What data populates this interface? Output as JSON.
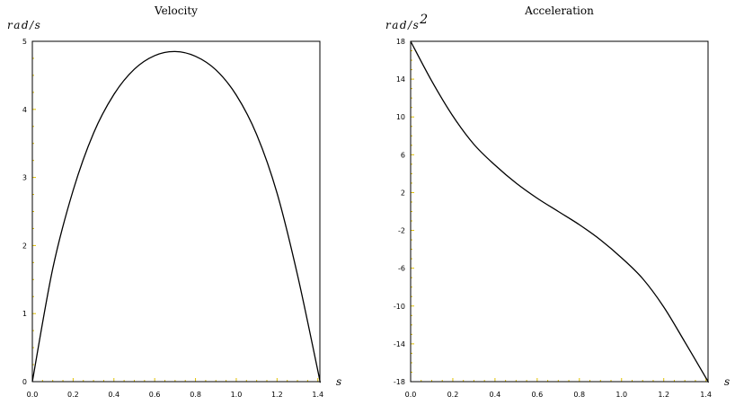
{
  "chart_data": [
    {
      "type": "line",
      "title": "Velocity",
      "ylabel": "rad/s",
      "xlabel": "s",
      "xlim": [
        0,
        1.41
      ],
      "ylim": [
        0,
        5
      ],
      "x_ticks": [
        0.0,
        0.2,
        0.4,
        0.6,
        0.8,
        1.0,
        1.2,
        1.4
      ],
      "x_tick_labels": [
        "0.0",
        "0.2",
        "0.4",
        "0.6",
        "0.8",
        "1.0",
        "1.2",
        "1.4"
      ],
      "y_ticks": [
        0,
        1,
        2,
        3,
        4,
        5
      ],
      "y_tick_labels": [
        "0",
        "1",
        "2",
        "3",
        "4",
        "5"
      ],
      "grid": false,
      "series": [
        {
          "x": [
            0.0,
            0.1,
            0.2,
            0.3,
            0.4,
            0.5,
            0.6,
            0.7,
            0.8,
            0.9,
            1.0,
            1.1,
            1.2,
            1.3,
            1.4,
            1.41
          ],
          "values": [
            0.0,
            1.66,
            2.81,
            3.65,
            4.22,
            4.59,
            4.79,
            4.85,
            4.78,
            4.58,
            4.21,
            3.63,
            2.77,
            1.57,
            0.16,
            0.0
          ]
        }
      ]
    },
    {
      "type": "line",
      "title": "Acceleration",
      "ylabel": "rad/s",
      "ylabel_superscript": "2",
      "xlabel": "s",
      "xlim": [
        0,
        1.41
      ],
      "ylim": [
        -18,
        18
      ],
      "x_ticks": [
        0.0,
        0.2,
        0.4,
        0.6,
        0.8,
        1.0,
        1.2,
        1.4
      ],
      "x_tick_labels": [
        "0.0",
        "0.2",
        "0.4",
        "0.6",
        "0.8",
        "1.0",
        "1.2",
        "1.4"
      ],
      "y_ticks": [
        -18,
        -14,
        -10,
        -6,
        -2,
        2,
        6,
        10,
        14,
        18
      ],
      "y_tick_labels": [
        "-18",
        "-14",
        "-10",
        "-6",
        "-2",
        "2",
        "6",
        "10",
        "14",
        "18"
      ],
      "grid": false,
      "series": [
        {
          "x": [
            0.0,
            0.1,
            0.2,
            0.3,
            0.4,
            0.5,
            0.6,
            0.7,
            0.8,
            0.9,
            1.0,
            1.1,
            1.2,
            1.3,
            1.4,
            1.41
          ],
          "values": [
            18.0,
            13.8,
            10.1,
            7.1,
            4.9,
            3.0,
            1.4,
            0.0,
            -1.4,
            -3.0,
            -4.9,
            -7.1,
            -10.1,
            -13.8,
            -17.6,
            -18.0
          ]
        }
      ]
    }
  ],
  "colors": {
    "curve": "#000000",
    "frame": "#000000",
    "tick_marks": "#e0c000",
    "background": "#ffffff"
  }
}
